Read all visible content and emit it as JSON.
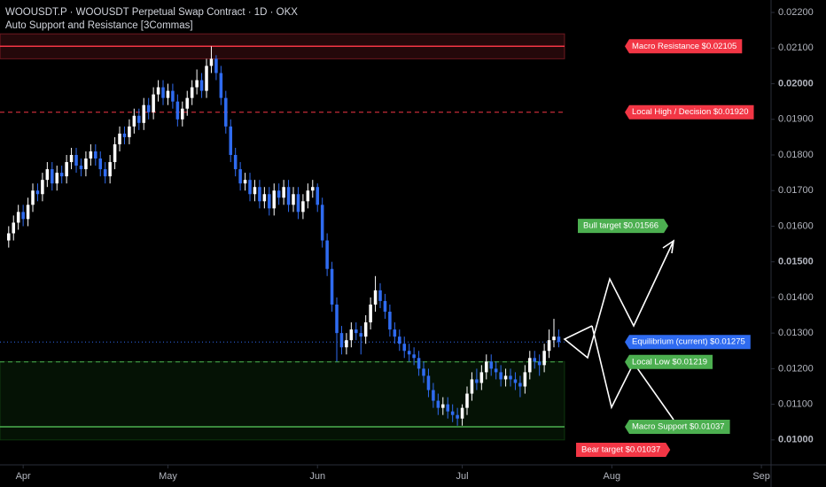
{
  "chart_data": {
    "type": "candlestick",
    "title": "WOOUSDT.P · WOOUSDT Perpetual Swap Contract · 1D · OKX",
    "subtitle": "Auto Support and Resistance [3Commas]",
    "x0": -3,
    "up_color": "#ffffff",
    "down_color": "#2f6bf0",
    "ohlc": [
      [
        0.0156,
        0.016,
        0.0154,
        0.0158
      ],
      [
        0.0158,
        0.0163,
        0.0156,
        0.0161
      ],
      [
        0.0161,
        0.0166,
        0.0159,
        0.0164
      ],
      [
        0.0164,
        0.0166,
        0.016,
        0.0162
      ],
      [
        0.0162,
        0.0168,
        0.016,
        0.0166
      ],
      [
        0.0166,
        0.0172,
        0.0164,
        0.017
      ],
      [
        0.017,
        0.0172,
        0.0167,
        0.0169
      ],
      [
        0.0169,
        0.0175,
        0.0167,
        0.0173
      ],
      [
        0.0173,
        0.0178,
        0.0171,
        0.0176
      ],
      [
        0.0176,
        0.0178,
        0.017,
        0.0172
      ],
      [
        0.0172,
        0.0177,
        0.017,
        0.0175
      ],
      [
        0.0175,
        0.0177,
        0.0172,
        0.0174
      ],
      [
        0.0174,
        0.018,
        0.0172,
        0.0178
      ],
      [
        0.0178,
        0.0182,
        0.0176,
        0.018
      ],
      [
        0.018,
        0.0182,
        0.0175,
        0.0177
      ],
      [
        0.0177,
        0.0179,
        0.0174,
        0.0176
      ],
      [
        0.0176,
        0.0181,
        0.0174,
        0.0179
      ],
      [
        0.0179,
        0.0183,
        0.0177,
        0.0181
      ],
      [
        0.0181,
        0.0183,
        0.0177,
        0.0179
      ],
      [
        0.0179,
        0.0181,
        0.0174,
        0.0176
      ],
      [
        0.0176,
        0.0178,
        0.0172,
        0.0174
      ],
      [
        0.0174,
        0.018,
        0.0172,
        0.0178
      ],
      [
        0.0178,
        0.0185,
        0.0176,
        0.0183
      ],
      [
        0.0183,
        0.0188,
        0.0181,
        0.0186
      ],
      [
        0.0186,
        0.0188,
        0.0183,
        0.0185
      ],
      [
        0.0185,
        0.019,
        0.0183,
        0.0188
      ],
      [
        0.0188,
        0.0193,
        0.0186,
        0.0191
      ],
      [
        0.0191,
        0.0193,
        0.0187,
        0.0189
      ],
      [
        0.0189,
        0.0196,
        0.0187,
        0.0194
      ],
      [
        0.0194,
        0.0196,
        0.019,
        0.0192
      ],
      [
        0.0192,
        0.0199,
        0.019,
        0.0197
      ],
      [
        0.0197,
        0.0201,
        0.0195,
        0.0199
      ],
      [
        0.0199,
        0.0201,
        0.0194,
        0.0196
      ],
      [
        0.0196,
        0.02,
        0.0194,
        0.0198
      ],
      [
        0.0198,
        0.02,
        0.0193,
        0.0195
      ],
      [
        0.0195,
        0.0197,
        0.0188,
        0.019
      ],
      [
        0.019,
        0.0195,
        0.0188,
        0.0193
      ],
      [
        0.0193,
        0.0198,
        0.0191,
        0.0196
      ],
      [
        0.0196,
        0.0201,
        0.0194,
        0.0199
      ],
      [
        0.0199,
        0.0204,
        0.0197,
        0.0201
      ],
      [
        0.0201,
        0.0203,
        0.0196,
        0.0198
      ],
      [
        0.0198,
        0.0207,
        0.0196,
        0.0205
      ],
      [
        0.0205,
        0.02105,
        0.0203,
        0.0207
      ],
      [
        0.0207,
        0.0208,
        0.0201,
        0.0203
      ],
      [
        0.0203,
        0.0205,
        0.0194,
        0.0196
      ],
      [
        0.0196,
        0.0198,
        0.0186,
        0.0188
      ],
      [
        0.0188,
        0.019,
        0.0178,
        0.018
      ],
      [
        0.018,
        0.0182,
        0.0174,
        0.0176
      ],
      [
        0.0176,
        0.0178,
        0.017,
        0.0172
      ],
      [
        0.0172,
        0.0175,
        0.017,
        0.0173
      ],
      [
        0.0173,
        0.0175,
        0.0167,
        0.0169
      ],
      [
        0.0169,
        0.0173,
        0.0167,
        0.0171
      ],
      [
        0.0171,
        0.0173,
        0.0165,
        0.0167
      ],
      [
        0.0167,
        0.0171,
        0.0165,
        0.0169
      ],
      [
        0.0169,
        0.0171,
        0.0163,
        0.0165
      ],
      [
        0.0165,
        0.0172,
        0.0163,
        0.017
      ],
      [
        0.017,
        0.0172,
        0.0166,
        0.0168
      ],
      [
        0.0168,
        0.0173,
        0.0166,
        0.0171
      ],
      [
        0.0171,
        0.0173,
        0.0164,
        0.0166
      ],
      [
        0.0166,
        0.0171,
        0.0164,
        0.0169
      ],
      [
        0.0169,
        0.0171,
        0.0162,
        0.0164
      ],
      [
        0.0164,
        0.0169,
        0.0162,
        0.0167
      ],
      [
        0.0167,
        0.0172,
        0.0165,
        0.017
      ],
      [
        0.017,
        0.0173,
        0.0168,
        0.0171
      ],
      [
        0.0171,
        0.0172,
        0.0164,
        0.0166
      ],
      [
        0.0166,
        0.0168,
        0.0154,
        0.0156
      ],
      [
        0.0156,
        0.0158,
        0.0146,
        0.0148
      ],
      [
        0.0148,
        0.015,
        0.0136,
        0.0138
      ],
      [
        0.0138,
        0.014,
        0.0122,
        0.013
      ],
      [
        0.013,
        0.0132,
        0.0124,
        0.0126
      ],
      [
        0.0126,
        0.013,
        0.0124,
        0.0128
      ],
      [
        0.0128,
        0.0133,
        0.0126,
        0.0131
      ],
      [
        0.0131,
        0.0133,
        0.0128,
        0.013
      ],
      [
        0.013,
        0.0132,
        0.0124,
        0.0129
      ],
      [
        0.0129,
        0.0135,
        0.0127,
        0.0133
      ],
      [
        0.0133,
        0.014,
        0.0131,
        0.0138
      ],
      [
        0.0138,
        0.0146,
        0.0136,
        0.0142
      ],
      [
        0.0142,
        0.0144,
        0.0137,
        0.0139
      ],
      [
        0.0139,
        0.0141,
        0.0134,
        0.0136
      ],
      [
        0.0136,
        0.0138,
        0.0129,
        0.0131
      ],
      [
        0.0131,
        0.0133,
        0.0127,
        0.0129
      ],
      [
        0.0129,
        0.0131,
        0.0125,
        0.0127
      ],
      [
        0.0127,
        0.0129,
        0.0123,
        0.0125
      ],
      [
        0.0125,
        0.0127,
        0.0122,
        0.0124
      ],
      [
        0.0124,
        0.0126,
        0.0121,
        0.0123
      ],
      [
        0.0123,
        0.0125,
        0.0118,
        0.012
      ],
      [
        0.012,
        0.0122,
        0.0116,
        0.0118
      ],
      [
        0.0118,
        0.012,
        0.0112,
        0.0114
      ],
      [
        0.0114,
        0.0116,
        0.0109,
        0.0111
      ],
      [
        0.0111,
        0.0113,
        0.0107,
        0.0109
      ],
      [
        0.0109,
        0.0112,
        0.0107,
        0.011
      ],
      [
        0.011,
        0.0112,
        0.0106,
        0.0108
      ],
      [
        0.0108,
        0.011,
        0.0105,
        0.0107
      ],
      [
        0.0107,
        0.0109,
        0.0104,
        0.0106
      ],
      [
        0.0106,
        0.011,
        0.0104,
        0.0109
      ],
      [
        0.0109,
        0.0115,
        0.0107,
        0.0113
      ],
      [
        0.0113,
        0.0119,
        0.0111,
        0.0117
      ],
      [
        0.0117,
        0.012,
        0.0114,
        0.0116
      ],
      [
        0.0116,
        0.0121,
        0.0114,
        0.0119
      ],
      [
        0.0119,
        0.0124,
        0.0117,
        0.0122
      ],
      [
        0.0122,
        0.0124,
        0.0118,
        0.012
      ],
      [
        0.012,
        0.0122,
        0.0117,
        0.0119
      ],
      [
        0.0119,
        0.0121,
        0.0115,
        0.0117
      ],
      [
        0.0117,
        0.012,
        0.0115,
        0.0118
      ],
      [
        0.0118,
        0.012,
        0.0115,
        0.0117
      ],
      [
        0.0117,
        0.0119,
        0.0114,
        0.0116
      ],
      [
        0.0116,
        0.0118,
        0.0112,
        0.0115
      ],
      [
        0.0115,
        0.0121,
        0.0113,
        0.0119
      ],
      [
        0.0119,
        0.0125,
        0.0117,
        0.0123
      ],
      [
        0.0123,
        0.0125,
        0.012,
        0.0122
      ],
      [
        0.0122,
        0.0124,
        0.0118,
        0.0121
      ],
      [
        0.0121,
        0.0127,
        0.0119,
        0.0125
      ],
      [
        0.0125,
        0.0131,
        0.0123,
        0.0128
      ],
      [
        0.0128,
        0.0134,
        0.0126,
        0.0129
      ],
      [
        0.0129,
        0.0131,
        0.0126,
        0.01275
      ]
    ],
    "xlim": [
      -4.8,
      155
    ],
    "xticks": [
      {
        "value": 0,
        "label": "Apr"
      },
      {
        "value": 30,
        "label": "May"
      },
      {
        "value": 61,
        "label": "Jun"
      },
      {
        "value": 91,
        "label": "Jul"
      },
      {
        "value": 122,
        "label": "Aug"
      },
      {
        "value": 153,
        "label": "Sep"
      }
    ],
    "ylim": [
      0.0093,
      0.02235
    ],
    "yticks": [
      {
        "value": 0.022,
        "label": "0.02200"
      },
      {
        "value": 0.021,
        "label": "0.02100"
      },
      {
        "value": 0.02,
        "label": "0.02000",
        "bold": true
      },
      {
        "value": 0.019,
        "label": "0.01900"
      },
      {
        "value": 0.018,
        "label": "0.01800"
      },
      {
        "value": 0.017,
        "label": "0.01700"
      },
      {
        "value": 0.016,
        "label": "0.01600"
      },
      {
        "value": 0.015,
        "label": "0.01500",
        "bold": true
      },
      {
        "value": 0.014,
        "label": "0.01400"
      },
      {
        "value": 0.013,
        "label": "0.01300"
      },
      {
        "value": 0.012,
        "label": "0.01200"
      },
      {
        "value": 0.011,
        "label": "0.01100"
      },
      {
        "value": 0.01,
        "label": "0.01000",
        "bold": true
      }
    ],
    "zones": [
      {
        "from": 0.0207,
        "to": 0.0214,
        "color": "#f23645"
      },
      {
        "from": 0.01,
        "to": 0.0122,
        "color": "#1f7a1f"
      }
    ],
    "levels": [
      {
        "label": "Macro Resistance $0.02105",
        "value": 0.02105,
        "color": "#f23645",
        "style": "solid"
      },
      {
        "label": "Local High / Decision $0.01920",
        "value": 0.0192,
        "color": "#f23645",
        "style": "dashed"
      },
      {
        "label": "Equilibrium (current) $0.01275",
        "value": 0.01275,
        "color": "#2f6bf0",
        "style": "dotted"
      },
      {
        "label": "Local Low $0.01219",
        "value": 0.01219,
        "color": "#4caf50",
        "style": "dashed"
      },
      {
        "label": "Macro Support $0.01037",
        "value": 0.01037,
        "color": "#4caf50",
        "style": "solid"
      }
    ],
    "targets": [
      {
        "label": "Bull target $0.01566",
        "value": 0.01566,
        "color": "#4caf50"
      },
      {
        "label": "Bear target $0.01037",
        "value": 0.01037,
        "color": "#f23645"
      }
    ]
  }
}
